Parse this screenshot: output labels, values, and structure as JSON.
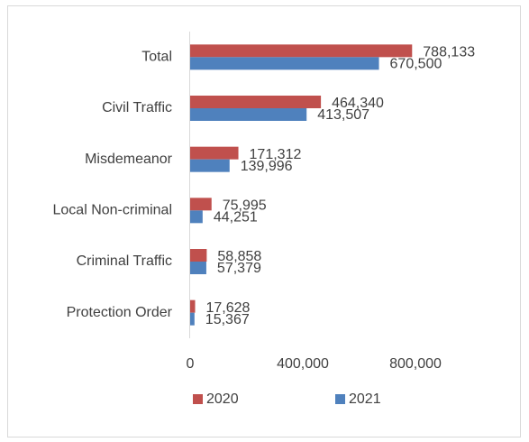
{
  "chart_data": {
    "type": "bar",
    "orientation": "horizontal",
    "categories": [
      "Total",
      "Civil Traffic",
      "Misdemeanor",
      "Local Non-criminal",
      "Criminal Traffic",
      "Protection Order"
    ],
    "series": [
      {
        "name": "2020",
        "color": "#c0504d",
        "values": [
          788133,
          464340,
          171312,
          75995,
          58858,
          17628
        ],
        "value_labels": [
          "788,133",
          "464,340",
          "171,312",
          "75,995",
          "58,858",
          "17,628"
        ]
      },
      {
        "name": "2021",
        "color": "#4f81bd",
        "values": [
          670500,
          413507,
          139996,
          44251,
          57379,
          15367
        ],
        "value_labels": [
          "670,500",
          "413,507",
          "139,996",
          "44,251",
          "57,379",
          "15,367"
        ]
      }
    ],
    "xlim": [
      0,
      800000
    ],
    "xticks": [
      0,
      {
        "value": 400000,
        "label": "400,000"
      },
      {
        "value": 800000,
        "label": "800,000"
      }
    ],
    "grid": false,
    "legend": "bottom"
  }
}
